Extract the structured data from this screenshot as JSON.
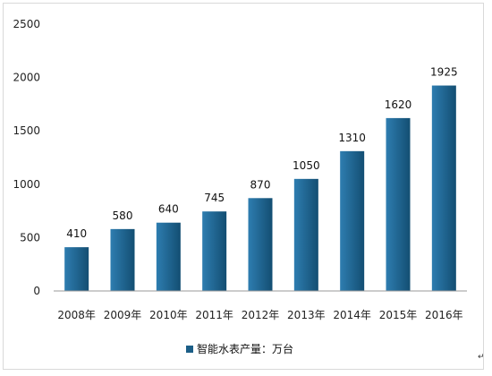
{
  "chart_data": {
    "type": "bar",
    "categories": [
      "2008年",
      "2009年",
      "2010年",
      "2011年",
      "2012年",
      "2013年",
      "2014年",
      "2015年",
      "2016年"
    ],
    "series": [
      {
        "name": "智能水表产量：万台",
        "values": [
          410,
          580,
          640,
          745,
          870,
          1050,
          1310,
          1620,
          1925
        ]
      }
    ],
    "data_labels": [
      "410",
      "580",
      "640",
      "745",
      "870",
      "1050",
      "1310",
      "1620",
      "1925"
    ],
    "yticks": [
      "0",
      "500",
      "1000",
      "1500",
      "2000",
      "2500"
    ],
    "ylim": [
      0,
      2500
    ],
    "grid": false,
    "legend_position": "bottom",
    "bar_color": "#1b5e87"
  },
  "corner_mark": "↵"
}
